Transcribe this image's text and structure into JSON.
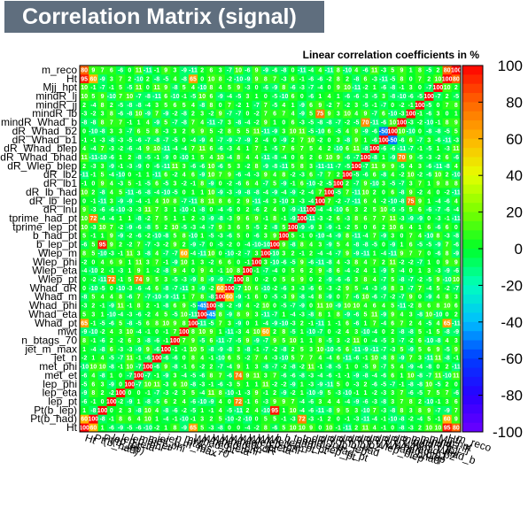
{
  "title": "Correlation Matrix (signal)",
  "subtitle": "Linear correlation coefficients in %",
  "colors": {
    "background": "#ffffff",
    "title_box": "#5f6e7e",
    "title_text": "#ffffff"
  },
  "chart_data": {
    "type": "heatmap",
    "title": "Correlation Matrix (signal)",
    "zlabel": "Linear correlation coefficients in %",
    "zlim": [
      -100,
      100
    ],
    "colorbar_ticks": [
      "100",
      "80",
      "60",
      "40",
      "20",
      "0",
      "-20",
      "-40",
      "-60",
      "-80",
      "-100"
    ],
    "variables": [
      "Ht",
      "Pt(b_had)",
      "Pt(b_lep)",
      "lep_pt",
      "lep_eta",
      "lep_phi",
      "met_et",
      "met_phi",
      "jet_n",
      "jet_m_max",
      "n_btags_70",
      "mwt",
      "Whad_pt",
      "Whad_eta",
      "Whad_phi",
      "Whad_m",
      "Whad_dR",
      "Wlep_pt",
      "Wlep_eta",
      "Wlep_phi",
      "Wlep_m",
      "b_lep_pt",
      "b_had_pt",
      "tprime_lep_pt",
      "tprime_had_pt",
      "dR_lnu",
      "dR_lb_lep",
      "dR_lb_had",
      "dR_lb1",
      "dR_lb2",
      "dR_Wlep_blep",
      "dR_Whad_bhad",
      "dR_Whad_blep",
      "dR_Whad_b1",
      "dR_Whad_b2",
      "mindR_Whad_b",
      "mindR_lb",
      "mindR_jj",
      "mindR_lj",
      "Mjj_hpt",
      "Ht",
      "m_reco"
    ],
    "x_tick_labels": [
      "Ht",
      "Pt(b_had)",
      "Pt(b_lep)",
      "lep_pt",
      "lep_eta",
      "lep_phi",
      "met_et",
      "met_phi",
      "jet_n",
      "jet_m_max",
      "n_btags_70",
      "mwt",
      "Whad_pt",
      "Whad_eta",
      "Whad_phi",
      "Whad_m",
      "Whad_dR",
      "Wlep_pt",
      "Wlep_eta",
      "Wlep_phi",
      "Wlep_m",
      "b_lep_pt",
      "b_had_pt",
      "tprime_lep_pt",
      "tprime_had_pt",
      "dR_lnu",
      "dR_lb_lep",
      "dR_lb_had",
      "dR_lb1",
      "dR_lb2",
      "dR_Wlep_blep",
      "dR_Whad_bhad",
      "dR_Whad_blep",
      "dR_Whad_b1",
      "dR_Whad_b2",
      "mindR_Whad_b",
      "mindR_lb",
      "mindR_jj",
      "mindR_lj",
      "Mjj_hpt",
      "Ht",
      "m_reco"
    ],
    "y_tick_labels": [
      "Ht",
      "Pt(b_had)",
      "Pt(b_lep)",
      "lep_pt",
      "lep_eta",
      "lep_phi",
      "met_et",
      "met_phi",
      "jet_n",
      "jet_m_max",
      "n_btags_70",
      "mwt",
      "Whad_pt",
      "Whad_eta",
      "Whad_phi",
      "Whad_m",
      "Whad_dR",
      "Wlep_pt",
      "Wlep_eta",
      "Wlep_phi",
      "Wlep_m",
      "b_lep_pt",
      "b_had_pt",
      "tprime_lep_pt",
      "tprime_had_pt",
      "dR_lnu",
      "dR_lb_lep",
      "dR_lb_had",
      "dR_lb1",
      "dR_lb2",
      "dR_Wlep_blep",
      "dR_Whad_bhad",
      "dR_Whad_blep",
      "dR_Whad_b1",
      "dR_Whad_b2",
      "mindR_Whad_b",
      "mindR_lb",
      "mindR_jj",
      "mindR_lj",
      "Mjj_hpt",
      "Ht",
      "m_reco"
    ],
    "values_note": "",
    "diagonal": 100,
    "strong_pairs": [
      {
        "a": "Ht",
        "b": "Pt(b_had)",
        "value": 60
      },
      {
        "a": "Ht",
        "b": "Ht",
        "value": 95
      },
      {
        "a": "Ht",
        "b": "m_reco",
        "value": 80
      },
      {
        "a": "Pt(b_had)",
        "b": "tprime_had_pt",
        "value": 72
      },
      {
        "a": "Pt(b_lep)",
        "b": "b_lep_pt",
        "value": 95
      },
      {
        "a": "lep_pt",
        "b": "Wlep_pt",
        "value": 72
      },
      {
        "a": "met_et",
        "b": "Wlep_pt",
        "value": 74
      },
      {
        "a": "Whad_pt",
        "b": "Ht",
        "value": 65
      },
      {
        "a": "Whad_m",
        "b": "Whad_dR",
        "value": 60
      },
      {
        "a": "dR_Whad_b1",
        "b": "dR_Whad_b2",
        "value": -50
      },
      {
        "a": "mindR_lb",
        "b": "dR_lb_lep",
        "value": 75
      },
      {
        "a": "mindR_Whad_b",
        "b": "dR_Whad_bhad",
        "value": 70
      },
      {
        "a": "Whad_eta",
        "b": "Whad_phi",
        "value": -45
      },
      {
        "a": "Wlep_m",
        "b": "mwt",
        "value": 60
      }
    ]
  }
}
